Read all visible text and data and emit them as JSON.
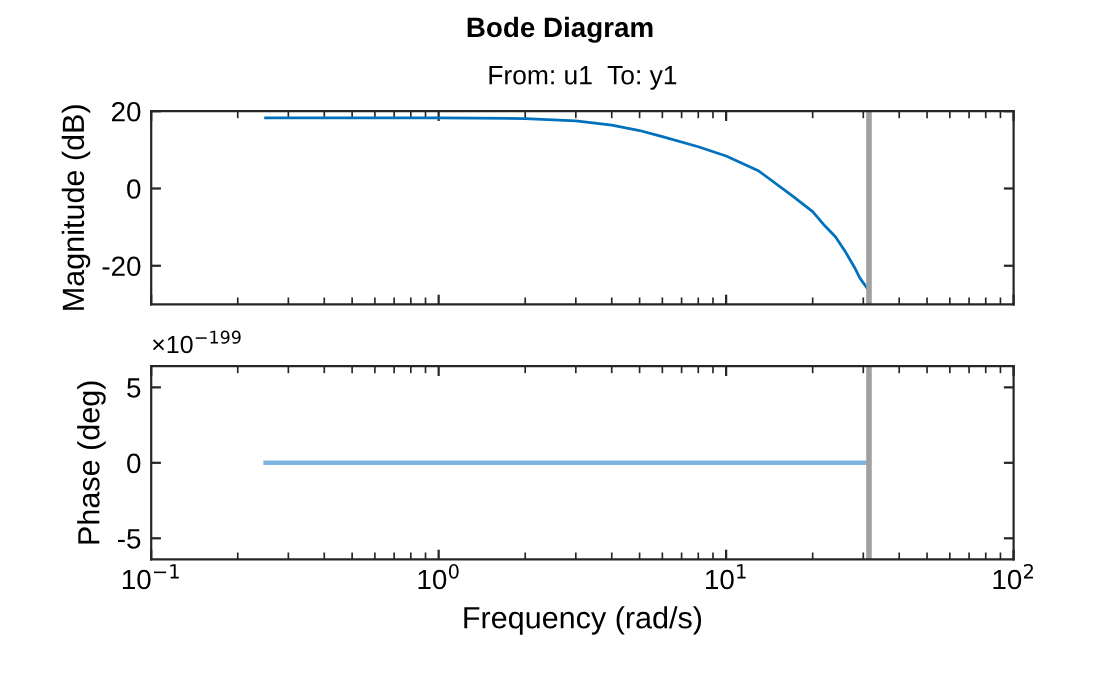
{
  "chart_data": [
    {
      "type": "line",
      "title": "Bode Diagram",
      "subtitle": "From: u1  To: y1",
      "ylabel": "Magnitude (dB)",
      "log": "x",
      "grid": false,
      "tick_labels": "y",
      "xlim": [
        0.1,
        100
      ],
      "xticks": [
        {
          "value": 0.1,
          "label": null
        },
        {
          "value": 1,
          "label": null
        },
        {
          "value": 10,
          "label": null
        },
        {
          "value": 100,
          "label": null
        }
      ],
      "ylim": [
        -30,
        20
      ],
      "yticks": [
        -20,
        0,
        20
      ],
      "series": [
        {
          "color": "#0072bd",
          "x": [
            0.25,
            1,
            2,
            3,
            4,
            5,
            6,
            8,
            10,
            13,
            17,
            20,
            22,
            24,
            26,
            28,
            29.2,
            31.4
          ],
          "values": [
            18.3,
            18.3,
            18.1,
            17.5,
            16.4,
            15,
            13.4,
            10.8,
            8.4,
            4.5,
            -1.9,
            -6,
            -9.6,
            -12.5,
            -16.4,
            -20.5,
            -23.2,
            -26.5
          ]
        }
      ],
      "ref_lines": [
        {
          "axis": "x",
          "value": 31.4,
          "color": "#a0a0a0"
        }
      ]
    },
    {
      "type": "line",
      "xlabel": "Frequency (rad/s)",
      "ylabel": "Phase (deg)",
      "log": "x",
      "grid": false,
      "annotations": [
        "×10$^{−199}$"
      ],
      "xlim": [
        0.1,
        100
      ],
      "xticks": [
        {
          "value": 0.1,
          "label": "10$^{−1}$"
        },
        {
          "value": 1,
          "label": "10$^{0}$"
        },
        {
          "value": 10,
          "label": "10$^{1}$"
        },
        {
          "value": 100,
          "label": "10$^{2}$"
        }
      ],
      "ylim": [
        -6.4,
        6.4
      ],
      "yticks": [
        {
          "value": -5,
          "label": "-5"
        },
        0,
        5
      ],
      "series": [
        {
          "color": "#80b4e2",
          "x": [
            0.25,
            31.4
          ],
          "values": [
            0,
            0
          ]
        }
      ],
      "ref_lines": [
        {
          "axis": "x",
          "value": 31.4,
          "color": "#a0a0a0"
        }
      ]
    }
  ]
}
